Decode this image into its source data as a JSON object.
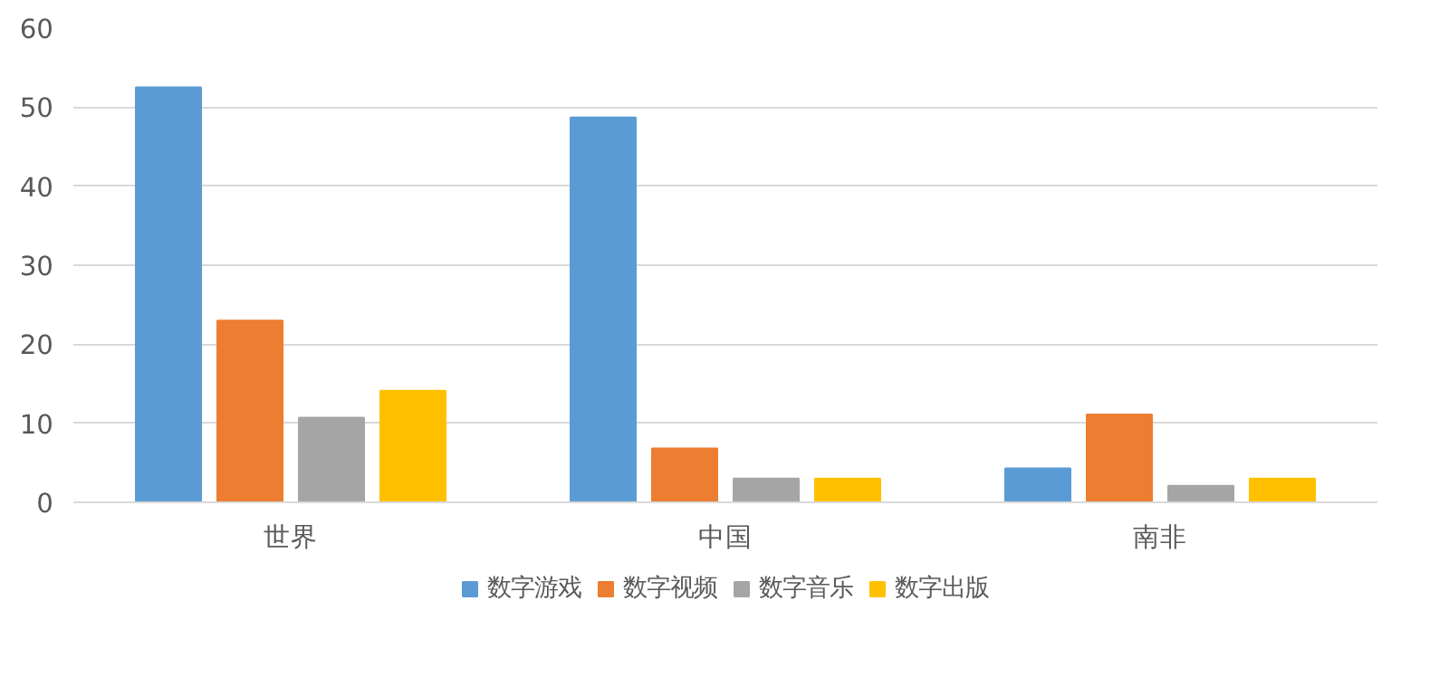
{
  "chart_data": {
    "type": "bar",
    "categories": [
      "世界",
      "中国",
      "南非"
    ],
    "series": [
      {
        "name": "数字游戏",
        "color": "#5b9bd5",
        "values": [
          52.5,
          48.7,
          4.3
        ]
      },
      {
        "name": "数字视频",
        "color": "#ed7d31",
        "values": [
          23.0,
          6.8,
          11.1
        ]
      },
      {
        "name": "数字音乐",
        "color": "#a5a5a5",
        "values": [
          10.7,
          3.0,
          2.1
        ]
      },
      {
        "name": "数字出版",
        "color": "#ffc000",
        "values": [
          14.1,
          3.0,
          3.0
        ]
      }
    ],
    "ylim": [
      0,
      60
    ],
    "yticks": [
      0,
      10,
      20,
      30,
      40,
      50,
      60
    ],
    "grid": "y",
    "legend": "bottom"
  }
}
